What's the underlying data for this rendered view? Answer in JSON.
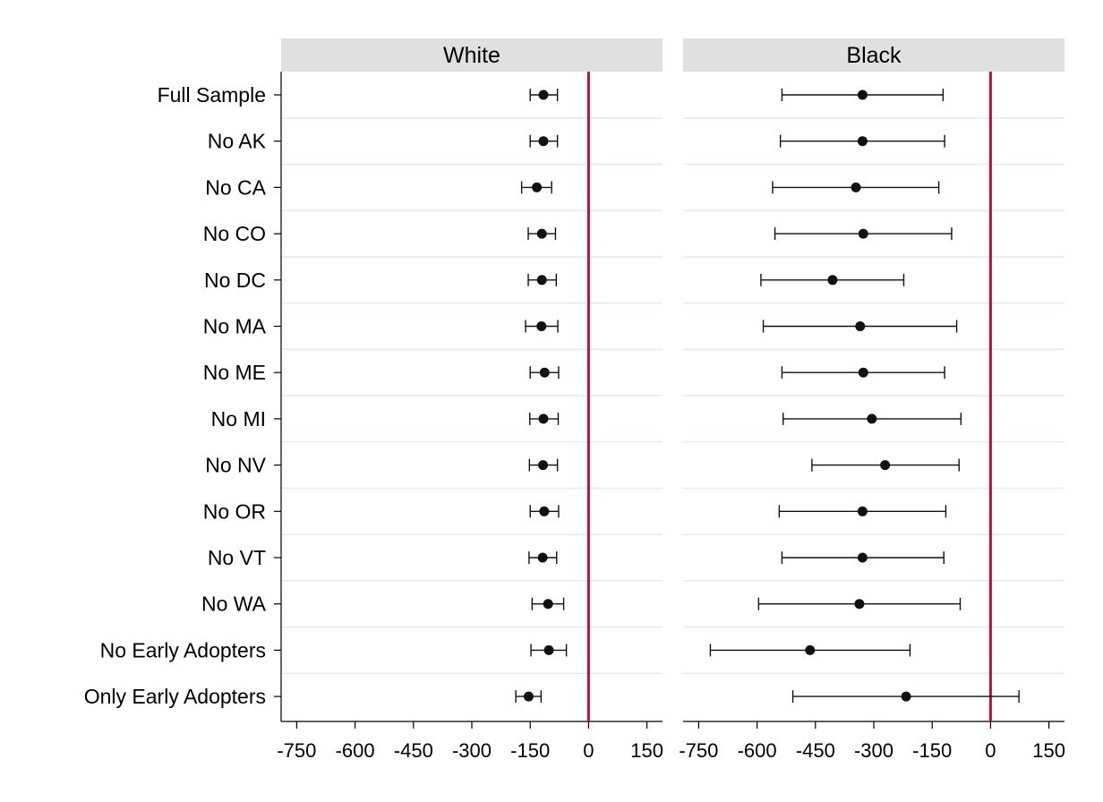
{
  "chart_data": {
    "type": "scatter",
    "subtype": "coefficient plot with 95% confidence intervals, two facet panels",
    "categories": [
      "Full Sample",
      "No AK",
      "No CA",
      "No CO",
      "No DC",
      "No MA",
      "No ME",
      "No MI",
      "No NV",
      "No OR",
      "No VT",
      "No WA",
      "No Early Adopters",
      "Only Early Adopters"
    ],
    "xlim": [
      -790,
      190
    ],
    "xticks": [
      -750,
      -600,
      -450,
      -300,
      -150,
      0,
      150
    ],
    "xtick_labels": [
      "-750",
      "-600",
      "-450",
      "-300",
      "-150",
      "0",
      "150"
    ],
    "reference_line": {
      "x": 0,
      "color": "#b5123e"
    },
    "grid": "horizontal, light",
    "panel_header_color": "#e0e0e0",
    "marker_color": "#111111",
    "panels": [
      {
        "title": "White",
        "series": [
          {
            "estimate": -116,
            "ci_low": -150,
            "ci_high": -80
          },
          {
            "estimate": -116,
            "ci_low": -150,
            "ci_high": -80
          },
          {
            "estimate": -133,
            "ci_low": -172,
            "ci_high": -95
          },
          {
            "estimate": -120,
            "ci_low": -155,
            "ci_high": -85
          },
          {
            "estimate": -120,
            "ci_low": -155,
            "ci_high": -83
          },
          {
            "estimate": -121,
            "ci_low": -162,
            "ci_high": -79
          },
          {
            "estimate": -113,
            "ci_low": -150,
            "ci_high": -77
          },
          {
            "estimate": -116,
            "ci_low": -151,
            "ci_high": -78
          },
          {
            "estimate": -117,
            "ci_low": -152,
            "ci_high": -80
          },
          {
            "estimate": -114,
            "ci_low": -150,
            "ci_high": -77
          },
          {
            "estimate": -118,
            "ci_low": -153,
            "ci_high": -82
          },
          {
            "estimate": -104,
            "ci_low": -145,
            "ci_high": -64
          },
          {
            "estimate": -102,
            "ci_low": -148,
            "ci_high": -57
          },
          {
            "estimate": -154,
            "ci_low": -187,
            "ci_high": -122
          }
        ]
      },
      {
        "title": "Black",
        "series": [
          {
            "estimate": -329,
            "ci_low": -536,
            "ci_high": -122
          },
          {
            "estimate": -329,
            "ci_low": -540,
            "ci_high": -118
          },
          {
            "estimate": -346,
            "ci_low": -560,
            "ci_high": -133
          },
          {
            "estimate": -327,
            "ci_low": -554,
            "ci_high": -100
          },
          {
            "estimate": -406,
            "ci_low": -590,
            "ci_high": -223
          },
          {
            "estimate": -335,
            "ci_low": -584,
            "ci_high": -87
          },
          {
            "estimate": -327,
            "ci_low": -536,
            "ci_high": -118
          },
          {
            "estimate": -305,
            "ci_low": -533,
            "ci_high": -76
          },
          {
            "estimate": -271,
            "ci_low": -459,
            "ci_high": -81
          },
          {
            "estimate": -329,
            "ci_low": -543,
            "ci_high": -115
          },
          {
            "estimate": -329,
            "ci_low": -536,
            "ci_high": -120
          },
          {
            "estimate": -337,
            "ci_low": -596,
            "ci_high": -78
          },
          {
            "estimate": -464,
            "ci_low": -720,
            "ci_high": -207
          },
          {
            "estimate": -217,
            "ci_low": -508,
            "ci_high": 73
          }
        ]
      }
    ]
  }
}
